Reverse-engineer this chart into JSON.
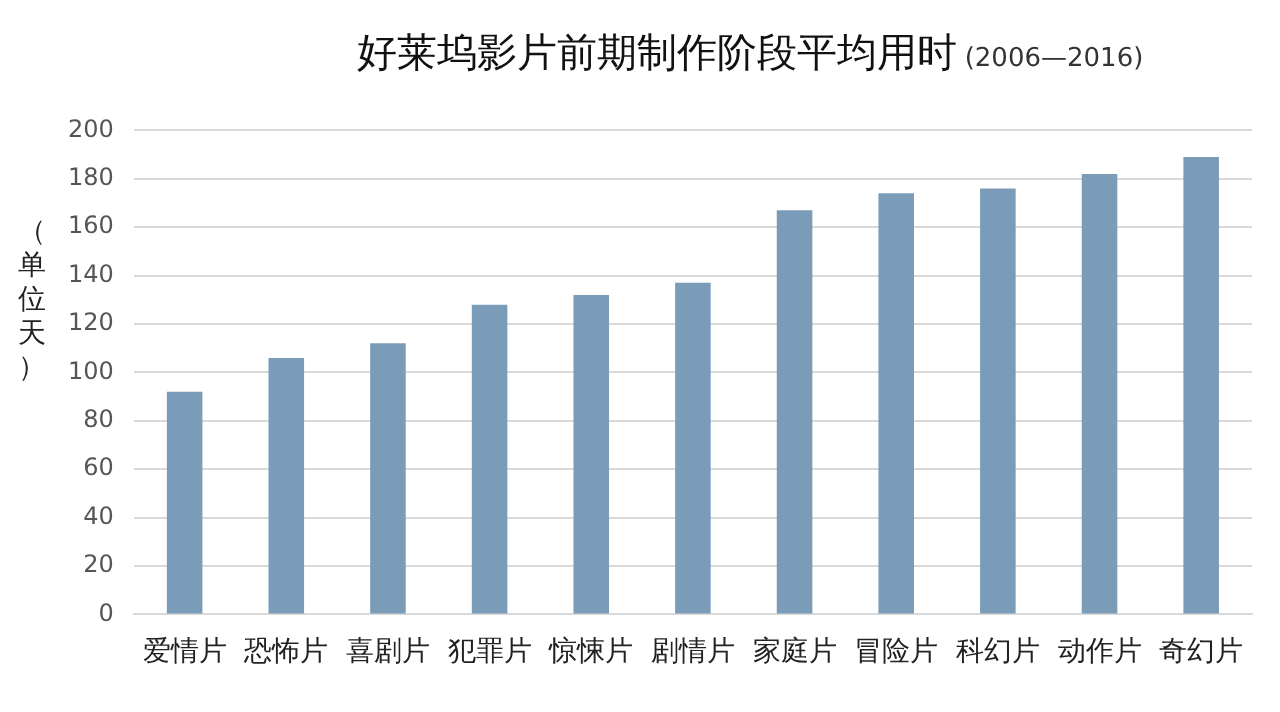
{
  "chart_data": {
    "type": "bar",
    "title": "好莱坞影片前期制作阶段平均用时",
    "subtitle": "(2006—2016)",
    "ylabel": "（单位天）",
    "categories": [
      "爱情片",
      "恐怖片",
      "喜剧片",
      "犯罪片",
      "惊悚片",
      "剧情片",
      "家庭片",
      "冒险片",
      "科幻片",
      "动作片",
      "奇幻片"
    ],
    "values": [
      92,
      106,
      112,
      128,
      132,
      137,
      167,
      174,
      176,
      182,
      189
    ],
    "color": "#7b9cb8",
    "ylim": [
      0,
      200
    ],
    "yticks": [
      0,
      20,
      40,
      60,
      80,
      100,
      120,
      140,
      160,
      180,
      200
    ],
    "grid": "y",
    "legend": false
  }
}
